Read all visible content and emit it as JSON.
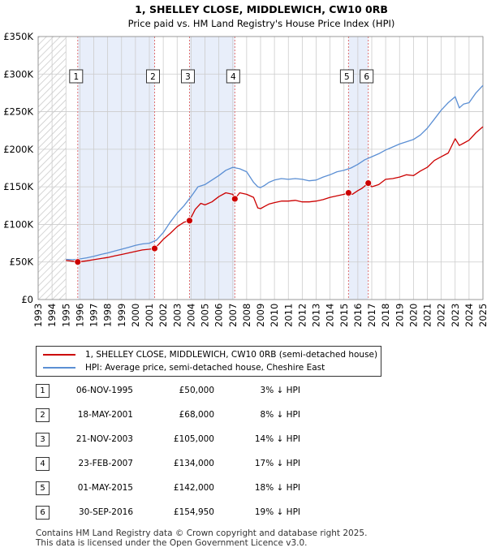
{
  "chart_data": {
    "type": "line",
    "title": "1, SHELLEY CLOSE, MIDDLEWICH, CW10 0RB",
    "subtitle": "Price paid vs. HM Land Registry's House Price Index (HPI)",
    "xlabel": "",
    "ylabel": "",
    "xlim": [
      1993,
      2025
    ],
    "ylim": [
      0,
      350000
    ],
    "y_ticks": [
      0,
      50000,
      100000,
      150000,
      200000,
      250000,
      300000,
      350000
    ],
    "y_tick_labels": [
      "£0",
      "£50K",
      "£100K",
      "£150K",
      "£200K",
      "£250K",
      "£300K",
      "£350K"
    ],
    "x_ticks": [
      1993,
      1994,
      1995,
      1996,
      1997,
      1998,
      1999,
      2000,
      2001,
      2002,
      2003,
      2004,
      2005,
      2006,
      2007,
      2008,
      2009,
      2010,
      2011,
      2012,
      2013,
      2014,
      2015,
      2016,
      2017,
      2018,
      2019,
      2020,
      2021,
      2022,
      2023,
      2024,
      2025
    ],
    "x_tick_labels": [
      "1993",
      "1994",
      "1995",
      "1996",
      "1997",
      "1998",
      "1999",
      "2000",
      "2001",
      "2002",
      "2003",
      "2004",
      "2005",
      "2006",
      "2007",
      "2008",
      "2009",
      "2010",
      "2011",
      "2012",
      "2013",
      "2014",
      "2015",
      "2016",
      "2017",
      "2018",
      "2019",
      "2020",
      "2021",
      "2022",
      "2023",
      "2024",
      "2025"
    ],
    "grid": true,
    "hatched_before": 1995.0,
    "series": [
      {
        "name": "1, SHELLEY CLOSE, MIDDLEWICH, CW10 0RB (semi-detached house)",
        "color": "#cc0000",
        "x": [
          1995.0,
          1995.5,
          1995.85,
          1996.5,
          1997,
          1997.5,
          1998,
          1998.5,
          1999,
          1999.5,
          2000,
          2000.5,
          2001,
          2001.38,
          2001.7,
          2002,
          2002.5,
          2003,
          2003.5,
          2003.89,
          2004.3,
          2004.7,
          2005,
          2005.5,
          2006,
          2006.5,
          2007,
          2007.15,
          2007.5,
          2008,
          2008.5,
          2008.8,
          2009,
          2009.3,
          2009.6,
          2010,
          2010.5,
          2011,
          2011.5,
          2012,
          2012.5,
          2013,
          2013.5,
          2014,
          2014.5,
          2015,
          2015.33,
          2015.6,
          2016,
          2016.3,
          2016.75,
          2017,
          2017.5,
          2018,
          2018.5,
          2019,
          2019.5,
          2020,
          2020.5,
          2021,
          2021.5,
          2022,
          2022.5,
          2023,
          2023.3,
          2023.6,
          2024,
          2024.5,
          2025
        ],
        "y": [
          52000,
          51000,
          50000,
          51500,
          53000,
          54500,
          56000,
          58000,
          60000,
          62000,
          64000,
          66000,
          67000,
          68000,
          74000,
          80000,
          88000,
          97000,
          103000,
          105000,
          120000,
          128000,
          126000,
          130000,
          137000,
          142000,
          140000,
          134000,
          142000,
          140000,
          136000,
          122000,
          121000,
          124000,
          127000,
          129000,
          131000,
          131000,
          132000,
          130000,
          130000,
          131000,
          133000,
          136000,
          138000,
          140000,
          142000,
          140000,
          145000,
          148000,
          154950,
          150000,
          153000,
          160000,
          161000,
          163000,
          166000,
          165000,
          171000,
          176000,
          185000,
          190000,
          195000,
          214000,
          205000,
          208000,
          212000,
          222000,
          230000
        ]
      },
      {
        "name": "HPI: Average price, semi-detached house, Cheshire East",
        "color": "#5b8fd4",
        "x": [
          1995.0,
          1995.5,
          1996,
          1996.5,
          1997,
          1997.5,
          1998,
          1998.5,
          1999,
          1999.5,
          2000,
          2000.5,
          2001,
          2001.5,
          2002,
          2002.5,
          2003,
          2003.5,
          2004,
          2004.5,
          2005,
          2005.5,
          2006,
          2006.5,
          2007,
          2007.5,
          2008,
          2008.5,
          2008.8,
          2009,
          2009.3,
          2009.6,
          2010,
          2010.5,
          2011,
          2011.5,
          2012,
          2012.5,
          2013,
          2013.5,
          2014,
          2014.5,
          2015,
          2015.5,
          2016,
          2016.5,
          2017,
          2017.5,
          2018,
          2018.5,
          2019,
          2019.5,
          2020,
          2020.5,
          2021,
          2021.5,
          2022,
          2022.5,
          2023,
          2023.3,
          2023.6,
          2024,
          2024.5,
          2025
        ],
        "y": [
          53500,
          53000,
          54000,
          55500,
          57500,
          60000,
          62000,
          64500,
          67000,
          69500,
          72000,
          74000,
          75000,
          79000,
          89000,
          103000,
          115000,
          125000,
          137000,
          150000,
          153000,
          159000,
          165000,
          172000,
          176000,
          174000,
          170000,
          156000,
          150000,
          149000,
          152000,
          156000,
          159000,
          161000,
          160000,
          161000,
          160000,
          158000,
          159000,
          163000,
          166000,
          170000,
          172000,
          175000,
          180000,
          186000,
          190000,
          194000,
          199000,
          203000,
          207000,
          210000,
          213000,
          219000,
          228000,
          240000,
          252000,
          262000,
          270000,
          255000,
          260000,
          262000,
          275000,
          285000
        ]
      }
    ],
    "sales": [
      {
        "label": "1",
        "x": 1995.85,
        "y": 50000
      },
      {
        "label": "2",
        "x": 2001.38,
        "y": 68000
      },
      {
        "label": "3",
        "x": 2003.89,
        "y": 105000
      },
      {
        "label": "4",
        "x": 2007.15,
        "y": 134000
      },
      {
        "label": "5",
        "x": 2015.33,
        "y": 142000
      },
      {
        "label": "6",
        "x": 2016.75,
        "y": 154950
      }
    ],
    "shaded_spans": [
      [
        1995.85,
        2001.38
      ],
      [
        2003.89,
        2007.15
      ],
      [
        2015.33,
        2016.75
      ]
    ],
    "colors": {
      "red": "#cc0000",
      "blue": "#5b8fd4",
      "shade": "#e8eefa",
      "grid": "#cccccc",
      "vline": "#e07070"
    }
  },
  "legend": {
    "items": [
      {
        "label": "1, SHELLEY CLOSE, MIDDLEWICH, CW10 0RB (semi-detached house)",
        "color": "#cc0000"
      },
      {
        "label": "HPI: Average price, semi-detached house, Cheshire East",
        "color": "#5b8fd4"
      }
    ]
  },
  "sales_table": [
    {
      "num": "1",
      "date": "06-NOV-1995",
      "price": "£50,000",
      "hpi": "3% ↓ HPI"
    },
    {
      "num": "2",
      "date": "18-MAY-2001",
      "price": "£68,000",
      "hpi": "8% ↓ HPI"
    },
    {
      "num": "3",
      "date": "21-NOV-2003",
      "price": "£105,000",
      "hpi": "14% ↓ HPI"
    },
    {
      "num": "4",
      "date": "23-FEB-2007",
      "price": "£134,000",
      "hpi": "17% ↓ HPI"
    },
    {
      "num": "5",
      "date": "01-MAY-2015",
      "price": "£142,000",
      "hpi": "18% ↓ HPI"
    },
    {
      "num": "6",
      "date": "30-SEP-2016",
      "price": "£154,950",
      "hpi": "19% ↓ HPI"
    }
  ],
  "footer": {
    "line1": "Contains HM Land Registry data © Crown copyright and database right 2025.",
    "line2": "This data is licensed under the Open Government Licence v3.0."
  }
}
